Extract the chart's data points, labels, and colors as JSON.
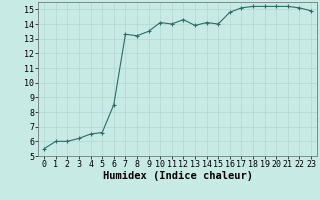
{
  "x": [
    0,
    1,
    2,
    3,
    4,
    5,
    6,
    7,
    8,
    9,
    10,
    11,
    12,
    13,
    14,
    15,
    16,
    17,
    18,
    19,
    20,
    21,
    22,
    23
  ],
  "y": [
    5.5,
    6.0,
    6.0,
    6.2,
    6.5,
    6.6,
    8.5,
    13.3,
    13.2,
    13.5,
    14.1,
    14.0,
    14.3,
    13.9,
    14.1,
    14.0,
    14.8,
    15.1,
    15.2,
    15.2,
    15.2,
    15.2,
    15.1,
    14.9
  ],
  "line_color": "#2d6e63",
  "marker": "+",
  "marker_size": 3.5,
  "background_color": "#c8eae4",
  "grid_color": "#b0d8d0",
  "xlabel": "Humidex (Indice chaleur)",
  "xlabel_fontsize": 7.5,
  "tick_fontsize": 6.0,
  "ylim": [
    5,
    15.5
  ],
  "xlim": [
    -0.5,
    23.5
  ],
  "yticks": [
    5,
    6,
    7,
    8,
    9,
    10,
    11,
    12,
    13,
    14,
    15
  ],
  "xticks": [
    0,
    1,
    2,
    3,
    4,
    5,
    6,
    7,
    8,
    9,
    10,
    11,
    12,
    13,
    14,
    15,
    16,
    17,
    18,
    19,
    20,
    21,
    22,
    23
  ]
}
